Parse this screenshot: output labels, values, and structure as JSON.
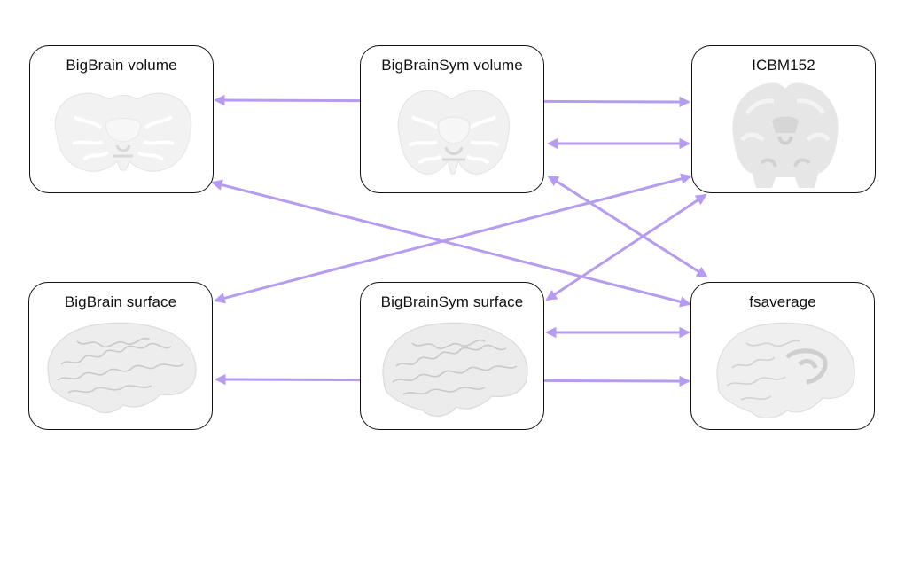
{
  "nodes": {
    "bigbrain_volume": {
      "label": "BigBrain volume",
      "image": "coronal-brain-slice"
    },
    "bigbrainsym_volume": {
      "label": "BigBrainSym volume",
      "image": "coronal-brain-slice"
    },
    "icbm152": {
      "label": "ICBM152",
      "image": "coronal-mri-slice"
    },
    "bigbrain_surface": {
      "label": "BigBrain surface",
      "image": "brain-surface-lateral"
    },
    "bigbrainsym_surface": {
      "label": "BigBrainSym surface",
      "image": "brain-surface-lateral"
    },
    "fsaverage": {
      "label": "fsaverage",
      "image": "brain-surface-lateral-inflated"
    }
  },
  "connections": [
    {
      "from": "bigbrain_volume",
      "to": "icbm152",
      "type": "bidirectional"
    },
    {
      "from": "bigbrainsym_volume",
      "to": "icbm152",
      "type": "bidirectional"
    },
    {
      "from": "bigbrain_volume",
      "to": "fsaverage",
      "type": "bidirectional"
    },
    {
      "from": "bigbrainsym_volume",
      "to": "fsaverage",
      "type": "bidirectional"
    },
    {
      "from": "icbm152",
      "to": "bigbrain_surface",
      "type": "bidirectional"
    },
    {
      "from": "icbm152",
      "to": "bigbrainsym_surface",
      "type": "bidirectional"
    },
    {
      "from": "bigbrainsym_surface",
      "to": "fsaverage",
      "type": "bidirectional"
    },
    {
      "from": "bigbrain_surface",
      "to": "fsaverage",
      "type": "bidirectional"
    }
  ],
  "colors": {
    "arrow": "#b59cf0",
    "border": "#111111",
    "brain_light": "#f1f1f1",
    "brain_mid": "#e3e3e3",
    "brain_dark": "#cfcfcf"
  }
}
